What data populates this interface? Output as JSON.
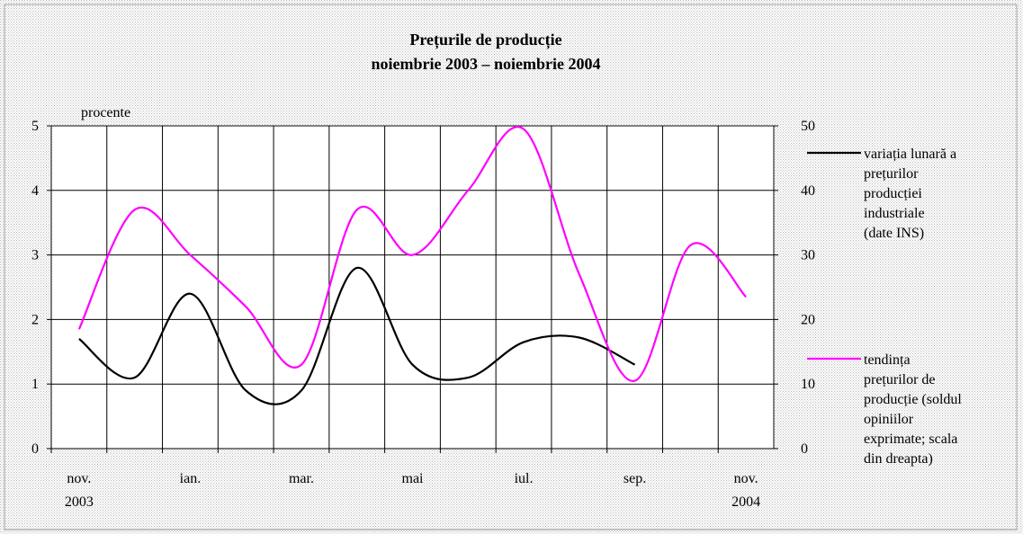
{
  "chart_data": {
    "type": "line",
    "title": "Prețurile de producție",
    "subtitle": "noiembrie 2003 – noiembrie 2004",
    "y_label": "procente",
    "categories": [
      "nov.\n2003",
      null,
      "ian.",
      null,
      "mar.",
      null,
      "mai",
      null,
      "iul.",
      null,
      "sep.",
      null,
      "nov.\n2004"
    ],
    "series": [
      {
        "name": "variația lunară a\nprețurilor\nproducției\nindustriale\n(date INS)",
        "color": "#000000",
        "values": [
          1.7,
          1.1,
          2.4,
          0.9,
          0.9,
          2.8,
          1.3,
          1.1,
          1.65,
          1.72,
          1.3,
          null,
          null
        ]
      },
      {
        "name": "tendința\nprețurilor de\nproducție (soldul\nopiniilor\nexprimate; scala\ndin dreapta)",
        "color": "#ff00ff",
        "axis": "y2",
        "values": [
          18.5,
          37,
          30,
          22,
          13,
          37,
          30,
          40,
          49.5,
          27,
          10.5,
          31.5,
          23.5
        ]
      }
    ],
    "ylim": [
      0,
      5
    ],
    "yticks": [
      0,
      1,
      2,
      3,
      4,
      5
    ],
    "y2lim": [
      0,
      50
    ],
    "y2ticks": [
      0,
      10,
      20,
      30,
      40,
      50
    ],
    "grid": true
  }
}
